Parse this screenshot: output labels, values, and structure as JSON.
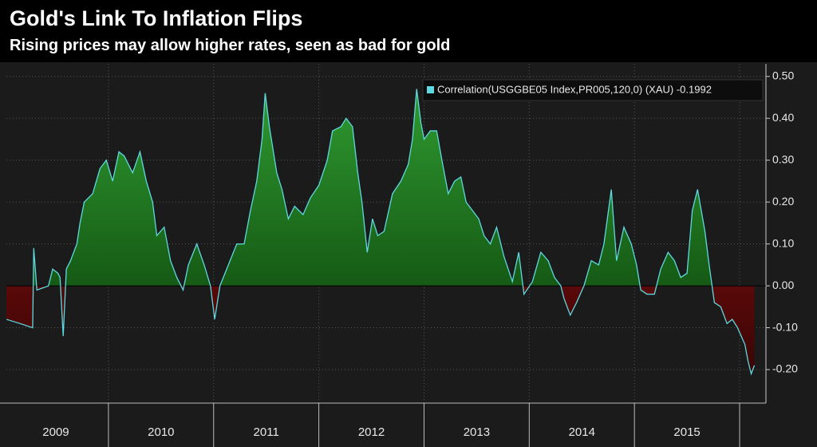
{
  "chart_data": {
    "type": "area",
    "title": "Gold's Link To Inflation Flips",
    "subtitle": "Rising prices may allow higher rates, seen as bad for gold",
    "legend_label": "Correlation(USGGBE05 Index,PR005,120,0) (XAU) -0.1992",
    "line_color": "#5fd8e0",
    "positive_color": "#2f9a2f",
    "negative_color": "#a01212",
    "grid": true,
    "xlim": [
      2009.03,
      2016.25
    ],
    "ylim": [
      -0.28,
      0.53
    ],
    "xticks": [
      {
        "value": 2009.5,
        "label": "2009"
      },
      {
        "value": 2010.5,
        "label": "2010"
      },
      {
        "value": 2011.5,
        "label": "2011"
      },
      {
        "value": 2012.5,
        "label": "2012"
      },
      {
        "value": 2013.5,
        "label": "2013"
      },
      {
        "value": 2014.5,
        "label": "2014"
      },
      {
        "value": 2015.5,
        "label": "2015"
      }
    ],
    "yticks": [
      {
        "value": -0.2,
        "label": "-0.20"
      },
      {
        "value": -0.1,
        "label": "-0.10"
      },
      {
        "value": 0,
        "label": "0.00"
      },
      {
        "value": 0.1,
        "label": "0.10"
      },
      {
        "value": 0.2,
        "label": "0.20"
      },
      {
        "value": 0.3,
        "label": "0.30"
      },
      {
        "value": 0.4,
        "label": "0.40"
      },
      {
        "value": 0.5,
        "label": "0.50"
      }
    ],
    "x": [
      2009.03,
      2009.16,
      2009.28,
      2009.29,
      2009.32,
      2009.43,
      2009.47,
      2009.52,
      2009.54,
      2009.57,
      2009.6,
      2009.64,
      2009.7,
      2009.73,
      2009.77,
      2009.85,
      2009.92,
      2009.98,
      2010.04,
      2010.1,
      2010.15,
      2010.23,
      2010.3,
      2010.36,
      2010.42,
      2010.46,
      2010.53,
      2010.59,
      2010.65,
      2010.71,
      2010.76,
      2010.84,
      2010.91,
      2010.97,
      2011.01,
      2011.06,
      2011.14,
      2011.22,
      2011.29,
      2011.35,
      2011.41,
      2011.46,
      2011.49,
      2011.53,
      2011.6,
      2011.65,
      2011.71,
      2011.77,
      2011.85,
      2011.92,
      2012.0,
      2012.08,
      2012.13,
      2012.21,
      2012.26,
      2012.32,
      2012.37,
      2012.41,
      2012.46,
      2012.51,
      2012.56,
      2012.62,
      2012.7,
      2012.78,
      2012.85,
      2012.89,
      2012.93,
      2012.97,
      2013.0,
      2013.06,
      2013.12,
      2013.17,
      2013.23,
      2013.29,
      2013.35,
      2013.4,
      2013.46,
      2013.52,
      2013.57,
      2013.63,
      2013.69,
      2013.76,
      2013.84,
      2013.9,
      2013.95,
      2014.03,
      2014.11,
      2014.18,
      2014.24,
      2014.3,
      2014.33,
      2014.39,
      2014.45,
      2014.52,
      2014.59,
      2014.66,
      2014.71,
      2014.78,
      2014.83,
      2014.9,
      2014.97,
      2015.02,
      2015.06,
      2015.12,
      2015.19,
      2015.25,
      2015.32,
      2015.38,
      2015.44,
      2015.5,
      2015.55,
      2015.6,
      2015.67,
      2015.71,
      2015.76,
      2015.82,
      2015.88,
      2015.93,
      2015.98,
      2016.05,
      2016.08,
      2016.11,
      2016.14
    ],
    "values": [
      -0.08,
      -0.09,
      -0.1,
      0.09,
      -0.01,
      0.0,
      0.04,
      0.03,
      0.02,
      -0.12,
      0.04,
      0.06,
      0.1,
      0.15,
      0.2,
      0.22,
      0.28,
      0.3,
      0.25,
      0.32,
      0.31,
      0.27,
      0.32,
      0.25,
      0.2,
      0.12,
      0.14,
      0.06,
      0.02,
      -0.01,
      0.05,
      0.1,
      0.05,
      0.0,
      -0.08,
      0.0,
      0.05,
      0.1,
      0.1,
      0.18,
      0.25,
      0.35,
      0.46,
      0.38,
      0.27,
      0.23,
      0.16,
      0.19,
      0.17,
      0.21,
      0.24,
      0.3,
      0.37,
      0.38,
      0.4,
      0.38,
      0.27,
      0.2,
      0.08,
      0.16,
      0.12,
      0.13,
      0.22,
      0.25,
      0.29,
      0.35,
      0.47,
      0.39,
      0.35,
      0.37,
      0.37,
      0.3,
      0.22,
      0.25,
      0.26,
      0.2,
      0.18,
      0.16,
      0.12,
      0.1,
      0.14,
      0.07,
      0.01,
      0.08,
      -0.02,
      0.01,
      0.08,
      0.06,
      0.02,
      0.0,
      -0.03,
      -0.07,
      -0.04,
      0.0,
      0.06,
      0.05,
      0.1,
      0.23,
      0.06,
      0.14,
      0.1,
      0.05,
      -0.01,
      -0.02,
      -0.02,
      0.04,
      0.08,
      0.06,
      0.02,
      0.03,
      0.18,
      0.23,
      0.13,
      0.05,
      -0.04,
      -0.05,
      -0.09,
      -0.08,
      -0.1,
      -0.14,
      -0.18,
      -0.21,
      -0.19
    ]
  }
}
